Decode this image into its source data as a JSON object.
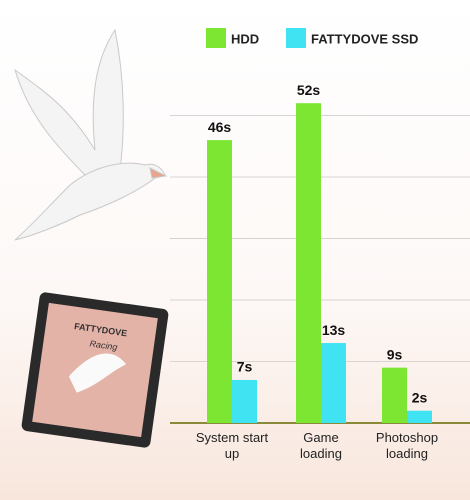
{
  "chart_data": {
    "type": "bar",
    "categories": [
      "System start up",
      "Game loading",
      "Photoshop loading"
    ],
    "series": [
      {
        "name": "HDD",
        "color": "#7de632",
        "values": [
          46,
          52,
          9
        ],
        "value_labels": [
          "46s",
          "52s",
          "9s"
        ]
      },
      {
        "name": "FATTYDOVE SSD",
        "color": "#3fe3f2",
        "values": [
          7,
          13,
          2
        ],
        "value_labels": [
          "7s",
          "13s",
          "2s"
        ]
      }
    ],
    "ylim": [
      0,
      60
    ],
    "yticks": [
      10,
      20,
      30,
      40,
      50
    ],
    "grid": true
  },
  "illustration": {
    "brand": "FATTYDOVE",
    "model": "Racing"
  }
}
